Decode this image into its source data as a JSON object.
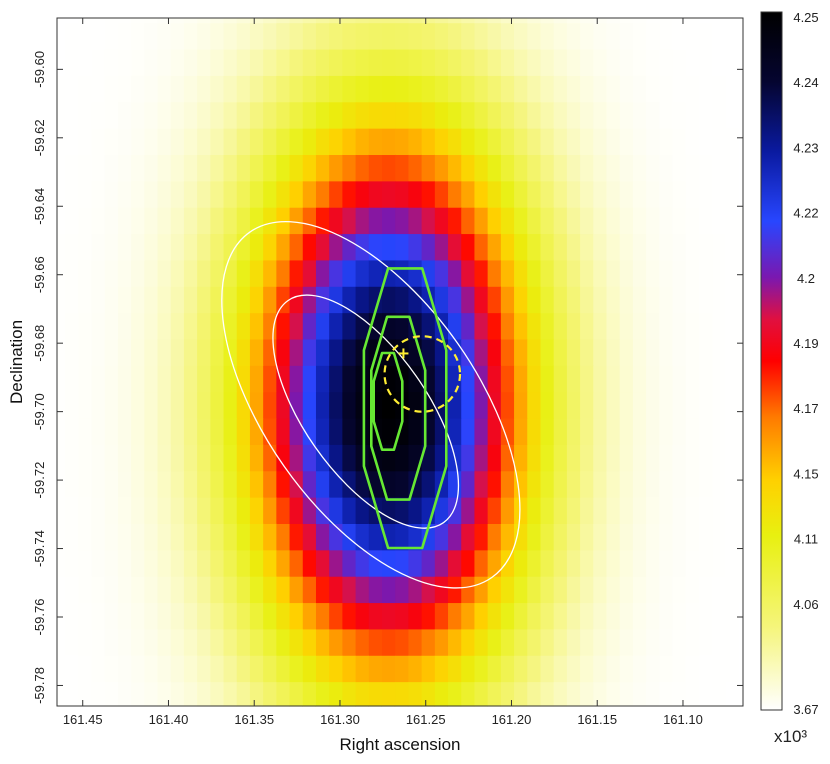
{
  "chart_data": {
    "type": "heatmap",
    "title": "",
    "xlabel": "Right ascension",
    "ylabel": "Declination",
    "xlim": [
      161.465,
      161.065
    ],
    "ylim": [
      -59.786,
      -59.585
    ],
    "x_ticks": [
      161.45,
      161.4,
      161.35,
      161.3,
      161.25,
      161.2,
      161.15,
      161.1
    ],
    "x_tick_labels": [
      "161.45",
      "161.40",
      "161.35",
      "161.30",
      "161.25",
      "161.20",
      "161.15",
      "161.10"
    ],
    "y_ticks": [
      -59.6,
      -59.62,
      -59.64,
      -59.66,
      -59.68,
      -59.7,
      -59.72,
      -59.74,
      -59.76,
      -59.78
    ],
    "y_tick_labels": [
      "-59.60",
      "-59.62",
      "-59.64",
      "-59.66",
      "-59.68",
      "-59.70",
      "-59.72",
      "-59.74",
      "-59.76",
      "-59.78"
    ],
    "grid": false,
    "map": {
      "center_ra": 161.272,
      "center_dec": -59.698,
      "pixel_size_deg": 0.0077,
      "peak_value": 4250,
      "min_value": 3670,
      "profile_sigma_deg": 0.055
    },
    "colorbar": {
      "min": 3.67,
      "max": 4.25,
      "tick_labels": [
        "4.25",
        "4.24",
        "4.23",
        "4.22",
        "4.2",
        "4.19",
        "4.17",
        "4.15",
        "4.11",
        "4.06",
        "3.67"
      ],
      "multiplier": "x10³",
      "colormap": "white-yellow-orange-red-purple-blue-black"
    },
    "contours_white": [
      {
        "center": [
          161.285,
          -59.7
        ],
        "radius_ra": 0.036,
        "radius_dec": 0.018,
        "rotation_deg": -35
      },
      {
        "center": [
          161.282,
          -59.698
        ],
        "radius_ra": 0.062,
        "radius_dec": 0.028,
        "rotation_deg": -35
      }
    ],
    "contours_green": [
      {
        "center": [
          161.272,
          -59.697
        ],
        "radius_deg": 0.009
      },
      {
        "center": [
          161.266,
          -59.699
        ],
        "radius_deg": 0.017
      },
      {
        "center": [
          161.262,
          -59.699
        ],
        "radius_deg": 0.026
      }
    ],
    "dashed_circle": {
      "center": [
        161.252,
        -59.689
      ],
      "radius_deg": 0.022,
      "color": "#ffee33"
    },
    "source_marker": {
      "ra": 161.263,
      "dec": -59.683,
      "color": "#ffee33"
    }
  }
}
